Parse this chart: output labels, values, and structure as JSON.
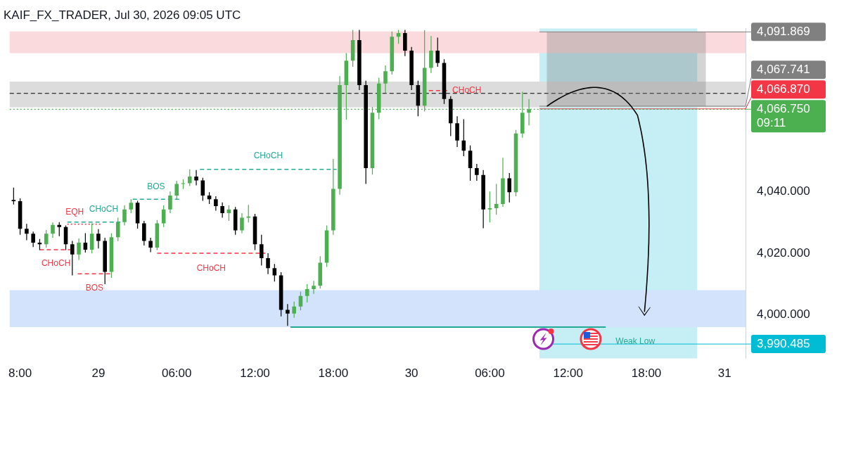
{
  "chart_data": {
    "type": "candlestick",
    "title": "KAIF_FX_TRADER, Jul 30, 2026 09:05 UTC",
    "x": [
      "2026-07-28T17:30",
      "2026-07-28T18:00",
      "2026-07-28T18:30",
      "2026-07-28T19:00",
      "2026-07-28T19:30",
      "2026-07-28T20:00",
      "2026-07-28T20:30",
      "2026-07-28T21:00",
      "2026-07-28T21:30",
      "2026-07-28T22:00",
      "2026-07-28T22:30",
      "2026-07-28T23:00",
      "2026-07-28T23:30",
      "2026-07-29T00:00",
      "2026-07-29T00:30",
      "2026-07-29T01:00",
      "2026-07-29T01:30",
      "2026-07-29T02:00",
      "2026-07-29T02:30",
      "2026-07-29T03:00",
      "2026-07-29T03:30",
      "2026-07-29T04:00",
      "2026-07-29T04:30",
      "2026-07-29T05:00",
      "2026-07-29T05:30",
      "2026-07-29T06:00",
      "2026-07-29T06:30",
      "2026-07-29T07:00",
      "2026-07-29T07:30",
      "2026-07-29T08:00",
      "2026-07-29T08:30",
      "2026-07-29T09:00",
      "2026-07-29T09:30",
      "2026-07-29T10:00",
      "2026-07-29T10:30",
      "2026-07-29T11:00",
      "2026-07-29T11:30",
      "2026-07-29T12:00",
      "2026-07-29T12:30",
      "2026-07-29T13:00",
      "2026-07-29T13:30",
      "2026-07-29T14:00",
      "2026-07-29T14:30",
      "2026-07-29T15:00",
      "2026-07-29T15:30",
      "2026-07-29T16:00",
      "2026-07-29T16:30",
      "2026-07-29T17:00",
      "2026-07-29T17:30",
      "2026-07-29T18:00",
      "2026-07-29T18:30",
      "2026-07-29T19:00",
      "2026-07-29T19:30",
      "2026-07-29T20:00",
      "2026-07-29T20:30",
      "2026-07-29T21:00",
      "2026-07-29T21:30",
      "2026-07-29T22:00",
      "2026-07-29T22:30",
      "2026-07-29T23:00",
      "2026-07-29T23:30",
      "2026-07-30T00:00",
      "2026-07-30T00:30",
      "2026-07-30T01:00",
      "2026-07-30T01:30",
      "2026-07-30T02:00",
      "2026-07-30T02:30",
      "2026-07-30T03:00",
      "2026-07-30T03:30",
      "2026-07-30T04:00",
      "2026-07-30T04:30",
      "2026-07-30T05:00",
      "2026-07-30T05:30",
      "2026-07-30T06:00",
      "2026-07-30T06:30",
      "2026-07-30T07:00",
      "2026-07-30T07:30",
      "2026-07-30T08:00",
      "2026-07-30T08:30",
      "2026-07-30T09:00"
    ],
    "ohlc": [
      [
        4037.3,
        4041.3,
        4035.8,
        4036.9
      ],
      [
        4036.9,
        4037.8,
        4026.0,
        4027.9
      ],
      [
        4027.9,
        4029.5,
        4024.2,
        4026.3
      ],
      [
        4026.3,
        4027.0,
        4022.0,
        4023.4
      ],
      [
        4023.4,
        4024.6,
        4021.0,
        4022.9
      ],
      [
        4022.9,
        4027.5,
        4021.8,
        4026.3
      ],
      [
        4026.3,
        4030.0,
        4025.0,
        4029.2
      ],
      [
        4029.2,
        4030.1,
        4025.5,
        4028.5
      ],
      [
        4028.5,
        4029.0,
        4021.0,
        4022.9
      ],
      [
        4022.9,
        4024.0,
        4012.8,
        4019.6
      ],
      [
        4019.6,
        4024.8,
        4017.8,
        4023.4
      ],
      [
        4023.4,
        4026.5,
        4020.2,
        4021.1
      ],
      [
        4021.1,
        4029.7,
        4019.9,
        4026.3
      ],
      [
        4026.3,
        4027.8,
        4021.5,
        4024.0
      ],
      [
        4024.0,
        4025.0,
        4009.9,
        4013.9
      ],
      [
        4013.9,
        4026.5,
        4012.0,
        4025.2
      ],
      [
        4025.2,
        4031.5,
        4023.9,
        4030.1
      ],
      [
        4030.1,
        4035.5,
        4029.0,
        4034.2
      ],
      [
        4034.2,
        4037.5,
        4033.0,
        4036.4
      ],
      [
        4036.4,
        4037.0,
        4028.0,
        4029.7
      ],
      [
        4029.7,
        4030.5,
        4022.5,
        4024.0
      ],
      [
        4024.0,
        4025.0,
        4020.3,
        4021.8
      ],
      [
        4021.8,
        4030.8,
        4021.0,
        4029.7
      ],
      [
        4029.7,
        4035.5,
        4028.5,
        4034.2
      ],
      [
        4034.2,
        4040.0,
        4033.0,
        4038.7
      ],
      [
        4038.7,
        4043.5,
        4037.5,
        4042.5
      ],
      [
        4042.5,
        4044.0,
        4040.8,
        4042.7
      ],
      [
        4042.7,
        4047.2,
        4041.8,
        4044.9
      ],
      [
        4044.9,
        4047.0,
        4042.0,
        4043.6
      ],
      [
        4043.6,
        4044.5,
        4037.0,
        4038.7
      ],
      [
        4038.7,
        4039.8,
        4036.0,
        4037.5
      ],
      [
        4037.5,
        4038.5,
        4033.8,
        4035.3
      ],
      [
        4035.3,
        4036.5,
        4031.5,
        4033.0
      ],
      [
        4033.0,
        4035.5,
        4030.5,
        4034.2
      ],
      [
        4034.2,
        4035.0,
        4026.0,
        4027.4
      ],
      [
        4027.4,
        4033.0,
        4026.5,
        4031.5
      ],
      [
        4031.5,
        4035.7,
        4030.0,
        4031.9
      ],
      [
        4031.9,
        4032.8,
        4021.0,
        4022.9
      ],
      [
        4022.9,
        4026.0,
        4016.0,
        4018.4
      ],
      [
        4018.4,
        4020.0,
        4013.2,
        4015.1
      ],
      [
        4015.1,
        4016.5,
        4010.8,
        4012.8
      ],
      [
        4012.8,
        4013.8,
        3999.5,
        4001.6
      ],
      [
        4001.6,
        4003.5,
        3996.4,
        4000.4
      ],
      [
        4000.4,
        4004.3,
        3999.0,
        4002.7
      ],
      [
        4002.7,
        4007.5,
        4001.5,
        4006.1
      ],
      [
        4006.1,
        4010.0,
        4004.0,
        4008.3
      ],
      [
        4008.3,
        4011.0,
        4006.8,
        4009.4
      ],
      [
        4009.4,
        4019.0,
        4008.5,
        4016.9
      ],
      [
        4016.9,
        4029.0,
        4015.5,
        4027.4
      ],
      [
        4027.4,
        4050.6,
        4026.0,
        4040.9
      ],
      [
        4040.9,
        4077.5,
        4039.0,
        4074.6
      ],
      [
        4074.6,
        4085.0,
        4063.4,
        4082.5
      ],
      [
        4082.5,
        4092.5,
        4080.5,
        4089.2
      ],
      [
        4089.2,
        4092.5,
        4073.0,
        4074.6
      ],
      [
        4074.6,
        4076.0,
        4042.5,
        4047.6
      ],
      [
        4047.6,
        4067.5,
        4045.5,
        4065.6
      ],
      [
        4065.6,
        4077.0,
        4063.5,
        4075.1
      ],
      [
        4075.1,
        4081.0,
        4072.0,
        4079.1
      ],
      [
        4079.1,
        4092.0,
        4078.0,
        4090.3
      ],
      [
        4090.3,
        4092.5,
        4088.0,
        4091.5
      ],
      [
        4091.5,
        4092.5,
        4084.0,
        4085.8
      ],
      [
        4085.8,
        4087.0,
        4073.0,
        4074.6
      ],
      [
        4074.6,
        4076.0,
        4064.5,
        4067.9
      ],
      [
        4067.9,
        4092.4,
        4066.0,
        4080.2
      ],
      [
        4080.2,
        4090.5,
        4078.5,
        4085.8
      ],
      [
        4085.8,
        4090.0,
        4080.5,
        4081.8
      ],
      [
        4081.8,
        4083.0,
        4068.5,
        4070.1
      ],
      [
        4070.1,
        4071.0,
        4058.0,
        4062.2
      ],
      [
        4062.2,
        4064.5,
        4054.5,
        4056.6
      ],
      [
        4056.6,
        4063.5,
        4051.5,
        4053.3
      ],
      [
        4053.3,
        4055.0,
        4043.5,
        4047.6
      ],
      [
        4047.6,
        4049.0,
        4043.5,
        4045.4
      ],
      [
        4045.4,
        4047.0,
        4028.1,
        4034.2
      ],
      [
        4034.2,
        4040.0,
        4030.0,
        4034.6
      ],
      [
        4034.6,
        4042.5,
        4032.5,
        4036.0
      ],
      [
        4036.0,
        4051.0,
        4035.0,
        4044.3
      ],
      [
        4044.3,
        4046.0,
        4036.5,
        4039.8
      ],
      [
        4039.8,
        4060.0,
        4038.5,
        4058.9
      ],
      [
        4058.9,
        4072.4,
        4057.5,
        4065.6
      ],
      [
        4065.6,
        4070.0,
        4061.5,
        4066.75
      ]
    ],
    "colors": [
      "#000000",
      "#000000",
      "#000000",
      "#000000",
      "#000000",
      "#4caf50",
      "#4caf50",
      "#000000",
      "#000000",
      "#000000",
      "#4caf50",
      "#000000",
      "#4caf50",
      "#000000",
      "#000000",
      "#4caf50",
      "#4caf50",
      "#4caf50",
      "#4caf50",
      "#000000",
      "#000000",
      "#000000",
      "#4caf50",
      "#4caf50",
      "#4caf50",
      "#4caf50",
      "#4caf50",
      "#4caf50",
      "#000000",
      "#000000",
      "#000000",
      "#000000",
      "#000000",
      "#4caf50",
      "#000000",
      "#4caf50",
      "#4caf50",
      "#000000",
      "#000000",
      "#000000",
      "#000000",
      "#000000",
      "#000000",
      "#4caf50",
      "#4caf50",
      "#4caf50",
      "#4caf50",
      "#4caf50",
      "#4caf50",
      "#4caf50",
      "#4caf50",
      "#4caf50",
      "#4caf50",
      "#000000",
      "#000000",
      "#4caf50",
      "#4caf50",
      "#4caf50",
      "#4caf50",
      "#4caf50",
      "#000000",
      "#000000",
      "#000000",
      "#4caf50",
      "#4caf50",
      "#000000",
      "#000000",
      "#000000",
      "#000000",
      "#000000",
      "#000000",
      "#000000",
      "#000000",
      "#4caf50",
      "#4caf50",
      "#4caf50",
      "#000000",
      "#4caf50",
      "#4caf50",
      "#4caf50"
    ],
    "xlim": [
      "2026-07-28T17:12",
      "2026-07-31T01:36"
    ],
    "xticks": [
      {
        "value": "2026-07-28T18:00",
        "label": "8:00"
      },
      {
        "value": "2026-07-29T00:00",
        "label": "29"
      },
      {
        "value": "2026-07-29T06:00",
        "label": "06:00"
      },
      {
        "value": "2026-07-29T12:00",
        "label": "12:00"
      },
      {
        "value": "2026-07-29T18:00",
        "label": "18:00"
      },
      {
        "value": "2026-07-30T00:00",
        "label": "30"
      },
      {
        "value": "2026-07-30T06:00",
        "label": "06:00"
      },
      {
        "value": "2026-07-30T12:00",
        "label": "12:00"
      },
      {
        "value": "2026-07-30T18:00",
        "label": "18:00"
      },
      {
        "value": "2026-07-31T00:00",
        "label": "31"
      }
    ],
    "ylim": [
      3985.8,
      4093
    ],
    "yticks": [
      {
        "value": 4000,
        "label": "4,000.000"
      },
      {
        "value": 4020,
        "label": "4,020.000"
      },
      {
        "value": 4040,
        "label": "4,040.000"
      }
    ],
    "grid": false,
    "legend": false,
    "bands": [
      {
        "axis": "x",
        "from": "2026-07-30T09:48",
        "to": "2026-07-30T21:54",
        "color": "#c5eef5"
      },
      {
        "axis": "y",
        "from": 4085,
        "to": 4092,
        "color": "#fadadd"
      },
      {
        "axis": "y",
        "from": 3996,
        "to": 4008,
        "color": "#d3e3fb"
      },
      {
        "axis": "y",
        "from": 4067.4,
        "to": 4075.7,
        "color": "#dcdcdc"
      }
    ],
    "marker": "none",
    "series": [
      {
        "type": "line",
        "x": [
          "2026-07-29T07:47",
          "2026-07-29T18:15"
        ],
        "values": [
          4047.2,
          4047.2
        ],
        "color": "#22ab94",
        "line_style": "dashed"
      },
      {
        "type": "line",
        "x": [
          "2026-07-29T02:38",
          "2026-07-29T06:11"
        ],
        "values": [
          4037.5,
          4037.5
        ],
        "color": "#22ab94",
        "line_style": "dashed"
      },
      {
        "type": "line",
        "x": [
          "2026-07-28T21:37",
          "2026-07-29T00:16"
        ],
        "values": [
          4029.4,
          4029.4
        ],
        "color": "#f23645",
        "line_style": "dotted"
      },
      {
        "type": "line",
        "x": [
          "2026-07-28T21:37",
          "2026-07-29T01:41"
        ],
        "values": [
          4030.1,
          4030.1
        ],
        "color": "#22ab94",
        "line_style": "dashed"
      },
      {
        "type": "line",
        "x": [
          "2026-07-28T19:30",
          "2026-07-28T21:59"
        ],
        "values": [
          4021.1,
          4021.1
        ],
        "color": "#f23645",
        "line_style": "dashed"
      },
      {
        "type": "line",
        "x": [
          "2026-07-28T22:25",
          "2026-07-29T01:00"
        ],
        "values": [
          4013.3,
          4013.3
        ],
        "color": "#f23645",
        "line_style": "dashed"
      },
      {
        "type": "line",
        "x": [
          "2026-07-29T04:30",
          "2026-07-29T12:48"
        ],
        "values": [
          4020.0,
          4020.0
        ],
        "color": "#f23645",
        "line_style": "dashed"
      },
      {
        "type": "line",
        "x": [
          "2026-07-30T01:20",
          "2026-07-30T02:49"
        ],
        "values": [
          4072.8,
          4072.8
        ],
        "color": "#f23645",
        "line_style": "dashed"
      },
      {
        "type": "line",
        "x": [
          "2026-07-29T14:43",
          "2026-07-30T14:53"
        ],
        "values": [
          3996.0,
          3996.0
        ],
        "color": "#22ab94",
        "line_style": "solid"
      }
    ],
    "ref_lines": [
      {
        "axis": "y",
        "value": 4091.869,
        "label": "4,091.869",
        "color": "#808080"
      },
      {
        "axis": "y",
        "value": 4067.741,
        "label": "4,067.741",
        "color": "#808080"
      },
      {
        "axis": "y",
        "value": 4066.87,
        "label": "4,066.870",
        "color": "#f23645"
      },
      {
        "axis": "y",
        "value": 4066.75,
        "label": "4,066.750\n09:11",
        "color": "#4caf50",
        "line_style": "dotted"
      },
      {
        "axis": "y",
        "value": 3990.485,
        "label": "3,990.485",
        "color": "#00bcd4"
      },
      {
        "axis": "y",
        "value": 4071.9,
        "color": "#000000",
        "line_style": "dashed"
      }
    ],
    "annotations": [
      {
        "text": "CHoCH",
        "x": "2026-07-29T13:01",
        "y": 4047.2
      },
      {
        "text": "BOS",
        "x": "2026-07-29T04:25",
        "y": 4037.5
      },
      {
        "text": "EQH",
        "x": "2026-07-28T22:56",
        "y": 4029.4
      },
      {
        "text": "CHoCH",
        "x": "2026-07-28T23:39",
        "y": 4030.1
      },
      {
        "text": "CHoCH",
        "x": "2026-07-28T20:45",
        "y": 4021.1
      },
      {
        "text": "BOS",
        "x": "2026-07-28T23:42",
        "y": 4013.3
      },
      {
        "text": "CHoCH",
        "x": "2026-07-29T08:39",
        "y": 4020.0
      },
      {
        "text": "CHoCH",
        "x": "2026-07-30T02:05",
        "y": 4072.8
      },
      {
        "text": "Weak Low",
        "x": "2026-07-30T14:53",
        "y": 3996.0
      }
    ]
  }
}
